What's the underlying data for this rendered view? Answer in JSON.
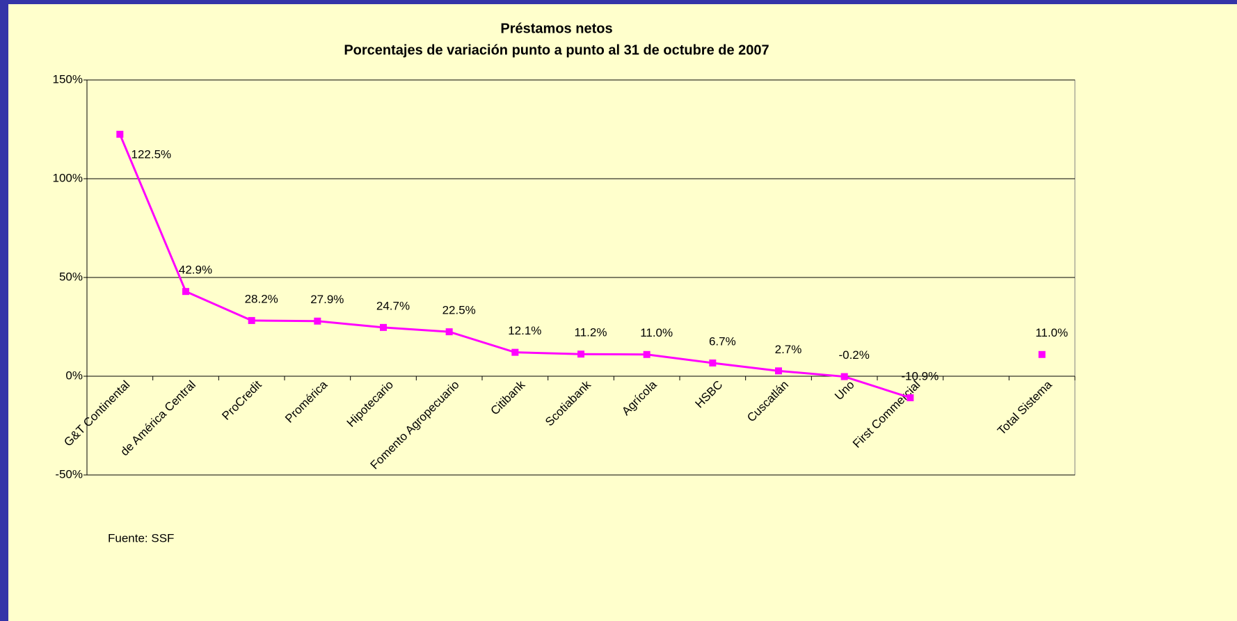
{
  "chart_data": {
    "type": "line",
    "title": "Préstamos netos",
    "subtitle": "Porcentajes de variación punto a punto al 31 de octubre de 2007",
    "categories": [
      "G&T Continental",
      "de América Central",
      "ProCredit",
      "Promérica",
      "Hipotecario",
      "Fomento Agropecuario",
      "Citibank",
      "Scotiabank",
      "Agrícola",
      "HSBC",
      "Cuscatlán",
      "Uno",
      "First Commercial",
      null,
      "Total Sistema"
    ],
    "values": [
      122.5,
      42.9,
      28.2,
      27.9,
      24.7,
      22.5,
      12.1,
      11.2,
      11.0,
      6.7,
      2.7,
      -0.2,
      -10.9,
      null,
      11.0
    ],
    "value_labels": [
      "122.5%",
      "42.9%",
      "28.2%",
      "27.9%",
      "24.7%",
      "22.5%",
      "12.1%",
      "11.2%",
      "11.0%",
      "6.7%",
      "2.7%",
      "-0.2%",
      "-10.9%",
      null,
      "11.0%"
    ],
    "color": "#ff00ff",
    "ylim": [
      -50,
      150
    ],
    "yticks": [
      {
        "value": -50,
        "label": "-50%"
      },
      {
        "value": 0,
        "label": "0%"
      },
      {
        "value": 50,
        "label": "50%"
      },
      {
        "value": 100,
        "label": "100%"
      },
      {
        "value": 150,
        "label": "150%"
      }
    ],
    "grid": true,
    "source": "Fuente: SSF"
  }
}
